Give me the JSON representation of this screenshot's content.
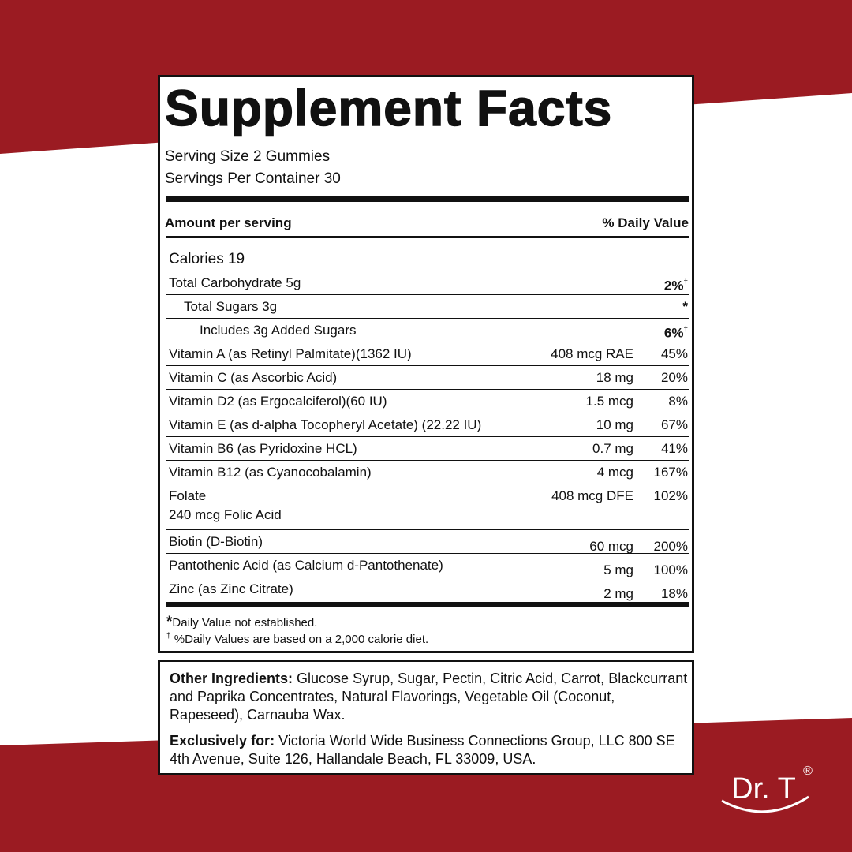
{
  "title": "Supplement Facts",
  "serving_size": "Serving Size 2 Gummies",
  "servings_per_container": "Servings Per Container 30",
  "header": {
    "amount": "Amount per serving",
    "daily_value": "% Daily Value"
  },
  "calories": "Calories 19",
  "rows": [
    {
      "name": "Total Carbohydrate 5g",
      "dv": "2%",
      "mark": "†"
    },
    {
      "name": "Total Sugars 3g",
      "dv": "*"
    },
    {
      "name": "Includes 3g Added Sugars",
      "dv": "6%",
      "mark": "†"
    },
    {
      "name": "Vitamin A (as Retinyl Palmitate)(1362 IU)",
      "amount": "408 mcg RAE",
      "dv": "45%"
    },
    {
      "name": "Vitamin C (as Ascorbic Acid)",
      "amount": "18 mg",
      "dv": "20%"
    },
    {
      "name": "Vitamin D2 (as Ergocalciferol)(60 IU)",
      "amount": "1.5 mcg",
      "dv": "8%"
    },
    {
      "name": "Vitamin E (as d-alpha Tocopheryl Acetate) (22.22 IU)",
      "amount": "10 mg",
      "dv": "67%"
    },
    {
      "name": "Vitamin B6 (as Pyridoxine HCL)",
      "amount": "0.7 mg",
      "dv": "41%"
    },
    {
      "name": "Vitamin B12 (as Cyanocobalamin)",
      "amount": "4 mcg",
      "dv": "167%"
    },
    {
      "name": "Folate",
      "detail": "240 mcg Folic Acid",
      "amount": "408 mcg DFE",
      "dv": "102%"
    },
    {
      "name": "Biotin (D-Biotin)",
      "amount": "60 mcg",
      "dv": "200%"
    },
    {
      "name": "Pantothenic Acid (as Calcium d-Pantothenate)",
      "amount": "5 mg",
      "dv": "100%"
    },
    {
      "name": "Zinc (as Zinc Citrate)",
      "amount": "2 mg",
      "dv": "18%"
    }
  ],
  "footnotes": [
    {
      "mark": "*",
      "text": "Daily Value not established."
    },
    {
      "mark": "†",
      "text": "%Daily Values are based on a 2,000 calorie diet."
    }
  ],
  "other_ingredients": {
    "label": "Other Ingredients:",
    "text": "Glucose Syrup, Sugar, Pectin, Citric Acid, Carrot, Blackcurrant and Paprika Concentrates, Natural Flavorings, Vegetable Oil (Coconut, Rapeseed), Carnauba Wax."
  },
  "exclusively_for": {
    "label": "Exclusively for:",
    "text": "Victoria World Wide Business Connections Group, LLC 800 SE 4th Avenue, Suite 126, Hallandale Beach, FL 33009, USA."
  },
  "logo": {
    "text": "Dr. T",
    "mark": "®"
  }
}
